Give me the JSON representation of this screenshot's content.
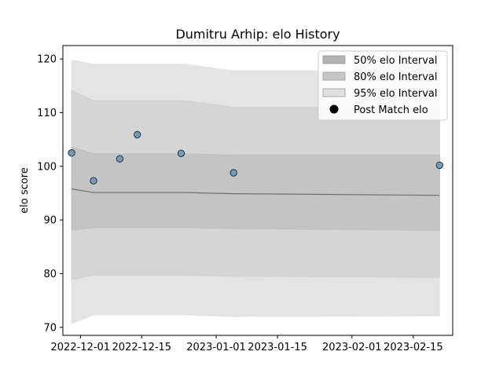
{
  "chart_data": {
    "type": "scatter",
    "title": "Dumitru Arhip: elo History",
    "xlabel": "",
    "ylabel": "elo score",
    "xlim": [
      "2022-11-27",
      "2023-02-24"
    ],
    "ylim": [
      68.5,
      122.5
    ],
    "x_ticks": [
      "2022-12-01",
      "2022-12-15",
      "2023-01-01",
      "2023-01-15",
      "2023-02-01",
      "2023-02-15"
    ],
    "y_ticks": [
      70,
      80,
      90,
      100,
      110,
      120
    ],
    "grid": false,
    "legend": {
      "position": "top-right",
      "entries": [
        "50% elo Interval",
        "80% elo Interval",
        "95% elo Interval",
        "Post Match elo"
      ]
    },
    "band_x": [
      "2022-11-29",
      "2022-12-04",
      "2022-12-25",
      "2023-01-05",
      "2023-02-21"
    ],
    "mean": [
      95.8,
      95.1,
      95.1,
      94.9,
      94.6
    ],
    "bands": [
      {
        "name": "95% elo Interval",
        "color": "#e4e4e4",
        "upper": [
          119.8,
          119.0,
          119.0,
          117.8,
          117.8
        ],
        "lower": [
          70.7,
          72.3,
          72.3,
          72.0,
          72.1
        ]
      },
      {
        "name": "80% elo Interval",
        "color": "#d0d0d0",
        "upper": [
          114.2,
          112.2,
          112.2,
          111.0,
          111.0
        ],
        "lower": [
          78.9,
          79.7,
          79.7,
          79.5,
          79.3
        ]
      },
      {
        "name": "50% elo Interval",
        "color": "#bdbdbd",
        "upper": [
          103.6,
          102.3,
          102.3,
          102.1,
          102.1
        ],
        "lower": [
          88.1,
          88.6,
          88.6,
          88.4,
          88.1
        ]
      }
    ],
    "series": [
      {
        "name": "Post Match elo",
        "color": "#6f9bbd",
        "points": [
          {
            "x": "2022-11-29",
            "y": 102.5
          },
          {
            "x": "2022-12-04",
            "y": 97.3
          },
          {
            "x": "2022-12-10",
            "y": 101.4
          },
          {
            "x": "2022-12-14",
            "y": 105.9
          },
          {
            "x": "2022-12-24",
            "y": 102.4
          },
          {
            "x": "2023-01-05",
            "y": 98.8
          },
          {
            "x": "2023-02-21",
            "y": 100.2
          }
        ]
      }
    ],
    "mean_line_color": "#6e6e6e"
  }
}
